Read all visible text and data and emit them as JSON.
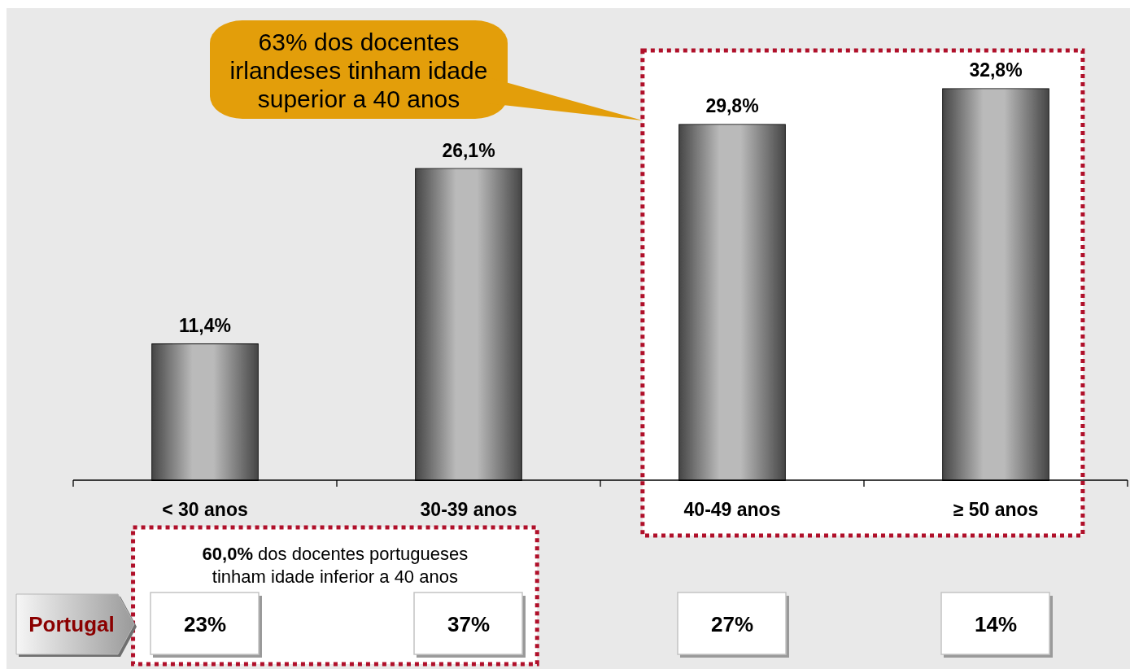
{
  "chart_data": [
    {
      "type": "bar",
      "categories": [
        "< 30 anos",
        "30-39 anos",
        "40-49 anos",
        "≥ 50 anos"
      ],
      "values": [
        11.4,
        26.1,
        29.8,
        32.8
      ],
      "value_labels": [
        "11,4%",
        "26,1%",
        "29,8%",
        "32,8%"
      ],
      "color": "#9c9c9c",
      "ylim": [
        0,
        40
      ],
      "bands": [
        {
          "axis": "x",
          "from": "40-49 anos",
          "to": "≥ 50 anos",
          "label": "63% dos docentes irlandeses tinham idade superior a 40 anos",
          "color": "#ffffff"
        }
      ]
    },
    {
      "type": "other",
      "categories": [
        null,
        null,
        null,
        null
      ],
      "series": [
        {
          "name": "Portugal",
          "values": [
            23,
            37,
            27,
            14
          ],
          "value_labels": [
            "23%",
            "37%",
            "27%",
            "14%"
          ]
        }
      ],
      "annotations": [
        "60,0% dos docentes portugueses tinham idade inferior a 40 anos"
      ]
    }
  ]
}
